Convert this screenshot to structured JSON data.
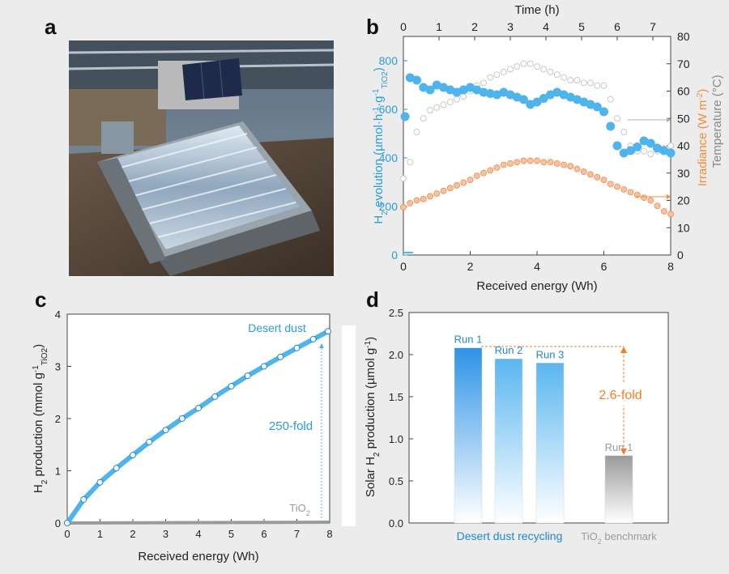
{
  "panels": {
    "a": "a",
    "b": "b",
    "c": "c",
    "d": "d"
  },
  "colors": {
    "blue": "#4fb3ec",
    "blue_dark": "#1e88d4",
    "orange": "#f28c3a",
    "orange_fill": "#f7c0a8",
    "gray": "#9a9a9a",
    "annot_orange": "#f07f2a"
  },
  "chart_data": [
    {
      "panel": "b",
      "type": "scatter",
      "xlabel": "Received energy (Wh)",
      "xlim": [
        0,
        8
      ],
      "xticks": [
        0,
        2,
        4,
        6,
        8
      ],
      "x2label": "Time (h)",
      "x2lim": [
        0,
        7.5
      ],
      "x2ticks": [
        0,
        1,
        2,
        3,
        4,
        5,
        6,
        7
      ],
      "ylabel_parts": [
        "H",
        "2",
        " evolution (µmol·h",
        "-1",
        "·g",
        "-1",
        "TiO2",
        ")"
      ],
      "ylim": [
        0,
        900
      ],
      "yticks": [
        0,
        200,
        400,
        600,
        800
      ],
      "y2label_irr_parts": [
        "Irradiance (W m",
        "-2",
        ")"
      ],
      "y2label_temp": "Temperature (°C)",
      "y2lim": [
        0,
        80
      ],
      "y2ticks": [
        0,
        10,
        20,
        30,
        40,
        50,
        60,
        70,
        80
      ],
      "series": [
        {
          "axis": "left",
          "x": [
            0.05,
            0.2,
            0.4,
            0.6,
            0.8,
            1.0,
            1.2,
            1.4,
            1.6,
            1.8,
            2.0,
            2.2,
            2.4,
            2.6,
            2.8,
            3.0,
            3.2,
            3.4,
            3.6,
            3.8,
            4.0,
            4.2,
            4.4,
            4.6,
            4.8,
            5.0,
            5.2,
            5.4,
            5.6,
            5.8,
            6.0,
            6.2,
            6.4,
            6.6,
            6.8,
            7.0,
            7.2,
            7.4,
            7.6,
            7.8,
            8.0
          ],
          "y": [
            570,
            730,
            720,
            690,
            680,
            700,
            690,
            680,
            670,
            680,
            690,
            680,
            670,
            665,
            660,
            670,
            660,
            650,
            640,
            620,
            630,
            645,
            660,
            670,
            660,
            650,
            640,
            630,
            620,
            610,
            590,
            530,
            450,
            420,
            430,
            445,
            470,
            460,
            440,
            430,
            420
          ]
        },
        {
          "axis": "right",
          "x": [
            0.0,
            0.2,
            0.4,
            0.6,
            0.8,
            1.0,
            1.2,
            1.4,
            1.6,
            1.8,
            2.0,
            2.2,
            2.4,
            2.6,
            2.8,
            3.0,
            3.2,
            3.4,
            3.6,
            3.8,
            4.0,
            4.2,
            4.4,
            4.6,
            4.8,
            5.0,
            5.2,
            5.4,
            5.6,
            5.8,
            6.0,
            6.2,
            6.4,
            6.6,
            6.8,
            7.0,
            7.2,
            7.4,
            7.6,
            7.8,
            8.0
          ],
          "y": [
            17.5,
            19,
            20,
            20.5,
            21.5,
            22.5,
            23.5,
            24.5,
            25.5,
            26.5,
            27.5,
            29,
            30,
            31,
            32,
            33,
            33.5,
            34,
            34.5,
            34.5,
            34.5,
            34,
            34,
            33.5,
            33,
            32.5,
            31.5,
            30.5,
            29.5,
            28.5,
            27.5,
            26,
            25,
            24,
            23,
            22,
            21,
            20,
            18,
            16,
            15
          ]
        },
        {
          "axis": "right",
          "x": [
            0.0,
            0.2,
            0.4,
            0.6,
            0.8,
            1.0,
            1.2,
            1.4,
            1.6,
            1.8,
            2.0,
            2.2,
            2.4,
            2.6,
            2.8,
            3.0,
            3.2,
            3.4,
            3.6,
            3.8,
            4.0,
            4.2,
            4.4,
            4.6,
            4.8,
            5.0,
            5.2,
            5.4,
            5.6,
            5.8,
            6.0,
            6.2,
            6.4,
            6.6,
            6.8,
            7.0,
            7.2,
            7.4,
            7.6,
            7.8,
            8.0
          ],
          "y": [
            28,
            34,
            45,
            50,
            53,
            54,
            55,
            56,
            57,
            58,
            60,
            62,
            63,
            65,
            66,
            67,
            68,
            69,
            70,
            70,
            69,
            68,
            67,
            66,
            65,
            64,
            64,
            63,
            63,
            62,
            62,
            57,
            50,
            45,
            40,
            38,
            38,
            37,
            38,
            39,
            40
          ]
        }
      ]
    },
    {
      "panel": "c",
      "type": "scatter",
      "xlabel": "Received energy (Wh)",
      "xlim": [
        0,
        8
      ],
      "xticks": [
        0,
        1,
        2,
        3,
        4,
        5,
        6,
        7,
        8
      ],
      "ylabel_parts": [
        "H",
        "2",
        " production (mmol g",
        "-1",
        "TiO2",
        ")"
      ],
      "ylim": [
        0,
        4
      ],
      "yticks": [
        0,
        1,
        2,
        3,
        4
      ],
      "series": [
        {
          "name": "Desert dust",
          "x": [
            0,
            0.5,
            1,
            1.5,
            2,
            2.5,
            3,
            3.5,
            4,
            4.5,
            5,
            5.5,
            6,
            6.5,
            7,
            7.5,
            7.95
          ],
          "y": [
            0,
            0.45,
            0.78,
            1.05,
            1.3,
            1.55,
            1.78,
            2.0,
            2.2,
            2.42,
            2.62,
            2.82,
            3.0,
            3.18,
            3.35,
            3.52,
            3.67
          ]
        },
        {
          "name": "TiO2",
          "x": [
            0,
            8
          ],
          "y": [
            0,
            0.015
          ]
        }
      ],
      "annotation": "250-fold"
    },
    {
      "panel": "d",
      "type": "bar",
      "ylabel_parts": [
        "Solar H",
        "2",
        " production (µmol g",
        "-1",
        ")"
      ],
      "ylim": [
        0,
        2.5
      ],
      "yticks": [
        "0.0",
        "0.5",
        "1.0",
        "1.5",
        "2.0",
        "2.5"
      ],
      "categories": [
        "Run 1",
        "Run 2",
        "Run 3",
        "Run 1"
      ],
      "values": [
        2.08,
        1.95,
        1.9,
        0.8
      ],
      "groups": [
        {
          "label": "Desert dust recycling",
          "members": [
            0,
            1,
            2
          ]
        },
        {
          "label_parts": [
            "TiO",
            "2",
            " benchmark"
          ],
          "members": [
            3
          ]
        }
      ],
      "annotation": "2.6-fold"
    }
  ]
}
